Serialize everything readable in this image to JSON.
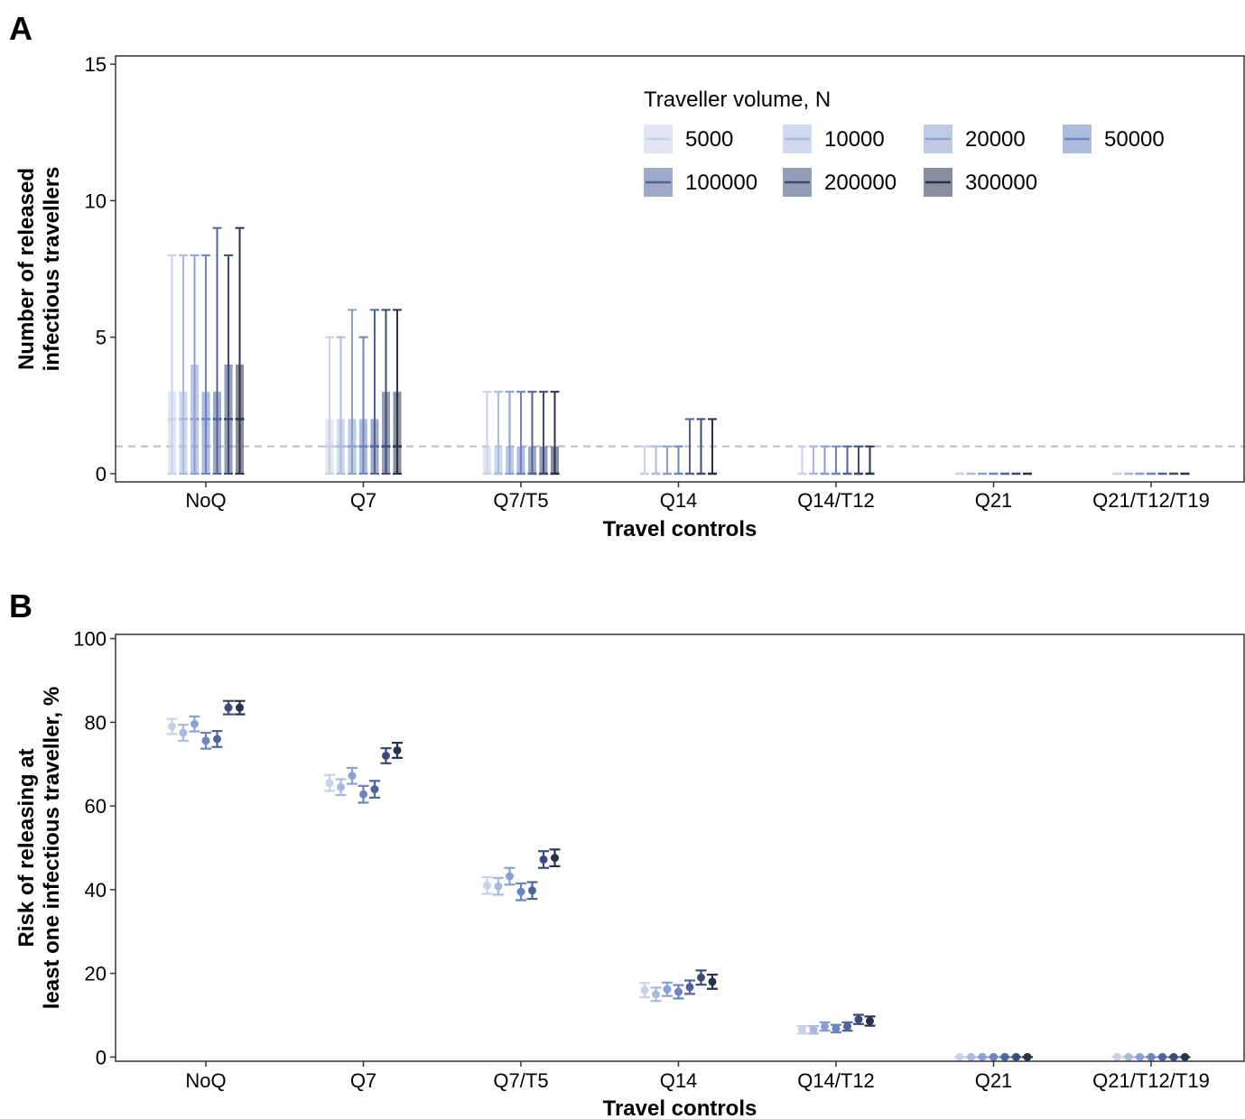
{
  "colors": {
    "N5000": "#c9d1e7",
    "N10000": "#aab9de",
    "N20000": "#8aa0d2",
    "N50000": "#6a85c0",
    "N100000": "#4f6599",
    "N200000": "#3b4c78",
    "N300000": "#27324d",
    "reference_line": "#bdbdbd",
    "axis": "#333333"
  },
  "chart_data": [
    {
      "panel": "A",
      "type": "box",
      "xlabel": "Travel controls",
      "ylabel": [
        "Number of released",
        "infectious travellers"
      ],
      "ylim": [
        -0.3,
        15.3
      ],
      "yticks": [
        0,
        5,
        10,
        15
      ],
      "reference_line_y": 1,
      "categories": [
        "NoQ",
        "Q7",
        "Q7/T5",
        "Q14",
        "Q14/T12",
        "Q21",
        "Q21/T12/T19"
      ],
      "legend": {
        "title": "Traveller volume, N",
        "position": "top-right",
        "entries": [
          "5000",
          "10000",
          "20000",
          "50000",
          "100000",
          "200000",
          "300000"
        ]
      },
      "series": [
        {
          "name": "5000",
          "color_key": "N5000",
          "stats": [
            [
              0,
              0,
              2,
              3,
              8
            ],
            [
              0,
              0,
              1,
              2,
              5
            ],
            [
              0,
              0,
              0,
              1,
              3
            ],
            [
              0,
              0,
              0,
              0,
              1
            ],
            [
              0,
              0,
              0,
              0,
              1
            ],
            [
              0,
              0,
              0,
              0,
              0
            ],
            [
              0,
              0,
              0,
              0,
              0
            ]
          ]
        },
        {
          "name": "10000",
          "color_key": "N10000",
          "stats": [
            [
              0,
              0,
              2,
              3,
              8
            ],
            [
              0,
              0,
              1,
              2,
              5
            ],
            [
              0,
              0,
              0,
              1,
              3
            ],
            [
              0,
              0,
              0,
              0,
              1
            ],
            [
              0,
              0,
              0,
              0,
              1
            ],
            [
              0,
              0,
              0,
              0,
              0
            ],
            [
              0,
              0,
              0,
              0,
              0
            ]
          ]
        },
        {
          "name": "20000",
          "color_key": "N20000",
          "stats": [
            [
              0,
              0,
              2,
              4,
              8
            ],
            [
              0,
              0,
              1,
              2,
              6
            ],
            [
              0,
              0,
              0,
              1,
              3
            ],
            [
              0,
              0,
              0,
              0,
              1
            ],
            [
              0,
              0,
              0,
              0,
              1
            ],
            [
              0,
              0,
              0,
              0,
              0
            ],
            [
              0,
              0,
              0,
              0,
              0
            ]
          ]
        },
        {
          "name": "50000",
          "color_key": "N50000",
          "stats": [
            [
              0,
              0,
              2,
              3,
              8
            ],
            [
              0,
              0,
              1,
              2,
              5
            ],
            [
              0,
              0,
              0,
              1,
              3
            ],
            [
              0,
              0,
              0,
              0,
              1
            ],
            [
              0,
              0,
              0,
              0,
              1
            ],
            [
              0,
              0,
              0,
              0,
              0
            ],
            [
              0,
              0,
              0,
              0,
              0
            ]
          ]
        },
        {
          "name": "100000",
          "color_key": "N100000",
          "stats": [
            [
              0,
              0,
              2,
              3,
              9
            ],
            [
              0,
              0,
              1,
              2,
              6
            ],
            [
              0,
              0,
              0,
              1,
              3
            ],
            [
              0,
              0,
              0,
              0,
              2
            ],
            [
              0,
              0,
              0,
              0,
              1
            ],
            [
              0,
              0,
              0,
              0,
              0
            ],
            [
              0,
              0,
              0,
              0,
              0
            ]
          ]
        },
        {
          "name": "200000",
          "color_key": "N200000",
          "stats": [
            [
              0,
              0,
              2,
              4,
              8
            ],
            [
              0,
              0,
              1,
              3,
              6
            ],
            [
              0,
              0,
              0,
              1,
              3
            ],
            [
              0,
              0,
              0,
              0,
              2
            ],
            [
              0,
              0,
              0,
              0,
              1
            ],
            [
              0,
              0,
              0,
              0,
              0
            ],
            [
              0,
              0,
              0,
              0,
              0
            ]
          ]
        },
        {
          "name": "300000",
          "color_key": "N300000",
          "stats": [
            [
              0,
              0,
              2,
              4,
              9
            ],
            [
              0,
              0,
              1,
              3,
              6
            ],
            [
              0,
              0,
              0,
              1,
              3
            ],
            [
              0,
              0,
              0,
              0,
              2
            ],
            [
              0,
              0,
              0,
              0,
              1
            ],
            [
              0,
              0,
              0,
              0,
              0
            ],
            [
              0,
              0,
              0,
              0,
              0
            ]
          ]
        }
      ]
    },
    {
      "panel": "B",
      "type": "errorbar",
      "xlabel": "Travel controls",
      "ylabel": [
        "Risk of releasing at",
        "least one infectious traveller, %"
      ],
      "ylim": [
        -1,
        101
      ],
      "yticks": [
        0,
        20,
        40,
        60,
        80,
        100
      ],
      "categories": [
        "NoQ",
        "Q7",
        "Q7/T5",
        "Q14",
        "Q14/T12",
        "Q21",
        "Q21/T12/T19"
      ],
      "series": [
        {
          "name": "5000",
          "color_key": "N5000",
          "points": [
            [
              79.0,
              77.2,
              80.8
            ],
            [
              65.5,
              63.6,
              67.4
            ],
            [
              41.0,
              39.0,
              43.0
            ],
            [
              16.0,
              14.3,
              17.7
            ],
            [
              6.5,
              5.6,
              7.4
            ],
            [
              0,
              0,
              0
            ],
            [
              0,
              0,
              0
            ]
          ]
        },
        {
          "name": "10000",
          "color_key": "N10000",
          "points": [
            [
              77.5,
              75.6,
              79.4
            ],
            [
              64.5,
              62.6,
              66.4
            ],
            [
              40.8,
              38.8,
              42.8
            ],
            [
              15.0,
              13.4,
              16.6
            ],
            [
              6.5,
              5.6,
              7.4
            ],
            [
              0,
              0,
              0
            ],
            [
              0,
              0,
              0
            ]
          ]
        },
        {
          "name": "20000",
          "color_key": "N20000",
          "points": [
            [
              79.6,
              77.8,
              81.4
            ],
            [
              67.2,
              65.3,
              69.1
            ],
            [
              43.2,
              41.2,
              45.2
            ],
            [
              16.2,
              14.6,
              17.8
            ],
            [
              7.3,
              6.3,
              8.3
            ],
            [
              0,
              0,
              0
            ],
            [
              0,
              0,
              0
            ]
          ]
        },
        {
          "name": "50000",
          "color_key": "N50000",
          "points": [
            [
              75.6,
              73.7,
              77.5
            ],
            [
              62.8,
              60.8,
              64.8
            ],
            [
              39.5,
              37.5,
              41.5
            ],
            [
              15.6,
              14.0,
              17.2
            ],
            [
              6.8,
              5.9,
              7.7
            ],
            [
              0,
              0,
              0
            ],
            [
              0,
              0,
              0
            ]
          ]
        },
        {
          "name": "100000",
          "color_key": "N100000",
          "points": [
            [
              76.0,
              74.1,
              77.9
            ],
            [
              64.0,
              62.0,
              66.0
            ],
            [
              39.8,
              37.8,
              41.8
            ],
            [
              16.7,
              15.1,
              18.3
            ],
            [
              7.3,
              6.3,
              8.3
            ],
            [
              0,
              0,
              0
            ],
            [
              0,
              0,
              0
            ]
          ]
        },
        {
          "name": "200000",
          "color_key": "N200000",
          "points": [
            [
              83.5,
              81.9,
              85.1
            ],
            [
              72.0,
              70.2,
              73.8
            ],
            [
              47.2,
              45.2,
              49.2
            ],
            [
              19.0,
              17.3,
              20.7
            ],
            [
              9.0,
              7.9,
              10.1
            ],
            [
              0,
              0,
              0
            ],
            [
              0,
              0,
              0
            ]
          ]
        },
        {
          "name": "300000",
          "color_key": "N300000",
          "points": [
            [
              83.5,
              81.9,
              85.1
            ],
            [
              73.3,
              71.5,
              75.1
            ],
            [
              47.6,
              45.6,
              49.6
            ],
            [
              18.0,
              16.3,
              19.7
            ],
            [
              8.6,
              7.5,
              9.7
            ],
            [
              0,
              0,
              0
            ],
            [
              0,
              0,
              0
            ]
          ]
        }
      ]
    }
  ]
}
